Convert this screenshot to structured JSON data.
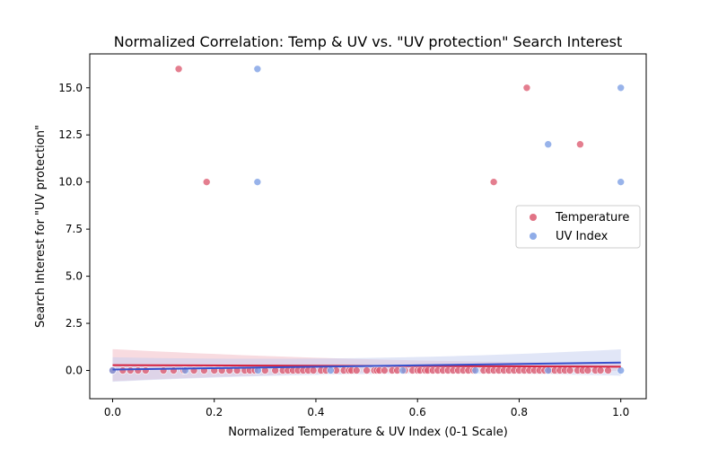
{
  "chart_data": {
    "type": "scatter",
    "title": "Normalized Correlation: Temp & UV vs. \"UV protection\" Search Interest",
    "xlabel": "Normalized Temperature & UV Index (0-1 Scale)",
    "ylabel": "Search Interest for \"UV protection\"",
    "xlim": [
      -0.045,
      1.05
    ],
    "ylim": [
      -1.5,
      16.8
    ],
    "xticks": [
      0.0,
      0.2,
      0.4,
      0.6,
      0.8,
      1.0
    ],
    "xtick_labels": [
      "0.0",
      "0.2",
      "0.4",
      "0.6",
      "0.8",
      "1.0"
    ],
    "yticks": [
      0.0,
      2.5,
      5.0,
      7.5,
      10.0,
      12.5,
      15.0
    ],
    "ytick_labels": [
      "0.0",
      "2.5",
      "5.0",
      "7.5",
      "10.0",
      "12.5",
      "15.0"
    ],
    "grid": false,
    "legend": {
      "placement": "center-right",
      "entries": [
        "Temperature",
        "UV Index"
      ]
    },
    "series": [
      {
        "name": "Temperature",
        "color": "#dc5a70",
        "trend_color": "#d6223f",
        "band_color": "#f2b7c1",
        "trend_start": 0.28,
        "trend_end": 0.2,
        "band_start": 0.85,
        "band_mid": 0.18,
        "band_end": 0.22,
        "high_points": {
          "x": [
            0.13,
            0.185,
            0.75,
            0.815,
            0.92
          ],
          "y": [
            16,
            10,
            10,
            15,
            12
          ]
        },
        "zero_x": [
          0.0,
          0.02,
          0.035,
          0.05,
          0.065,
          0.1,
          0.12,
          0.14,
          0.16,
          0.18,
          0.2,
          0.215,
          0.23,
          0.245,
          0.26,
          0.27,
          0.28,
          0.3,
          0.32,
          0.335,
          0.345,
          0.355,
          0.365,
          0.375,
          0.385,
          0.395,
          0.41,
          0.42,
          0.44,
          0.455,
          0.465,
          0.47,
          0.48,
          0.5,
          0.515,
          0.52,
          0.525,
          0.535,
          0.55,
          0.56,
          0.575,
          0.59,
          0.6,
          0.605,
          0.615,
          0.62,
          0.63,
          0.64,
          0.65,
          0.66,
          0.67,
          0.68,
          0.69,
          0.7,
          0.71,
          0.73,
          0.74,
          0.75,
          0.76,
          0.77,
          0.78,
          0.79,
          0.8,
          0.81,
          0.82,
          0.83,
          0.84,
          0.85,
          0.86,
          0.87,
          0.88,
          0.89,
          0.9,
          0.915,
          0.925,
          0.935,
          0.95,
          0.96,
          0.975
        ]
      },
      {
        "name": "UV Index",
        "color": "#7b9de4",
        "trend_color": "#3650cc",
        "band_color": "#c3cdf0",
        "trend_start": 0.05,
        "trend_end": 0.42,
        "band_start": 0.65,
        "band_mid": 0.18,
        "band_end": 0.7,
        "high_points": {
          "x": [
            0.285,
            0.285,
            0.857,
            1.0,
            1.0
          ],
          "y": [
            16,
            10,
            12,
            15,
            10
          ]
        },
        "zero_x": [
          0.0,
          0.143,
          0.286,
          0.429,
          0.571,
          0.714,
          0.857,
          1.0
        ]
      }
    ]
  }
}
